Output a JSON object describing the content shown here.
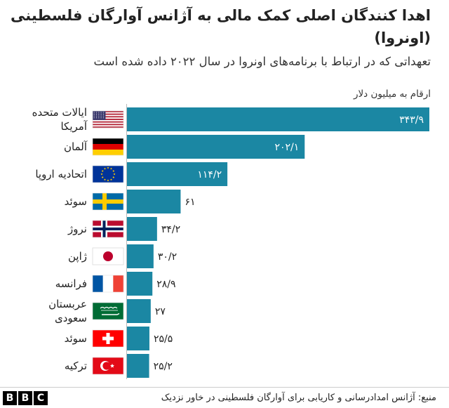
{
  "header": {
    "title": "اهدا کنندگان اصلی کمک مالی به آژانس آوارگان فلسطینی (اونروا)",
    "subtitle": "تعهداتی که در ارتباط با برنامه‌های اونروا در سال ۲۰۲۲ داده شده است",
    "unit_label": "ارقام به میلیون دلار"
  },
  "footer": {
    "logo_letters": [
      "B",
      "B",
      "C"
    ],
    "source": "منبع: آژانس امدادرسانی و کاریابی برای آوارگان فلسطینی در خاور نزدیک"
  },
  "colors": {
    "bar": "#1b87a3",
    "label_inside": "#ffffff",
    "label_outside": "#222222"
  },
  "chart_data": {
    "type": "bar",
    "orientation": "horizontal",
    "categories": [
      {
        "name_lines": [
          "ایالات متحده",
          "آمریکا"
        ],
        "flag": "us-flag-icon"
      },
      {
        "name_lines": [
          "آلمان"
        ],
        "flag": "germany-flag-icon"
      },
      {
        "name_lines": [
          "اتحادیه اروپا"
        ],
        "flag": "eu-flag-icon"
      },
      {
        "name_lines": [
          "سوئد"
        ],
        "flag": "sweden-flag-icon"
      },
      {
        "name_lines": [
          "نروژ"
        ],
        "flag": "norway-flag-icon"
      },
      {
        "name_lines": [
          "ژاپن"
        ],
        "flag": "japan-flag-icon"
      },
      {
        "name_lines": [
          "فرانسه"
        ],
        "flag": "france-flag-icon"
      },
      {
        "name_lines": [
          "عربستان",
          "سعودی"
        ],
        "flag": "saudi-flag-icon"
      },
      {
        "name_lines": [
          "سوئد"
        ],
        "flag": "switzerland-flag-icon"
      },
      {
        "name_lines": [
          "ترکیه"
        ],
        "flag": "turkey-flag-icon"
      }
    ],
    "values": [
      343.9,
      202.1,
      114.2,
      61,
      34.2,
      30.2,
      28.9,
      27,
      25.5,
      25.2
    ],
    "value_labels": [
      "۳۴۳/۹",
      "۲۰۲/۱",
      "۱۱۴/۲",
      "۶۱",
      "۳۴/۲",
      "۳۰/۲",
      "۲۸/۹",
      "۲۷",
      "۲۵/۵",
      "۲۵/۲"
    ],
    "xlim": [
      0,
      343.9
    ],
    "grid": false,
    "legend": "none"
  }
}
